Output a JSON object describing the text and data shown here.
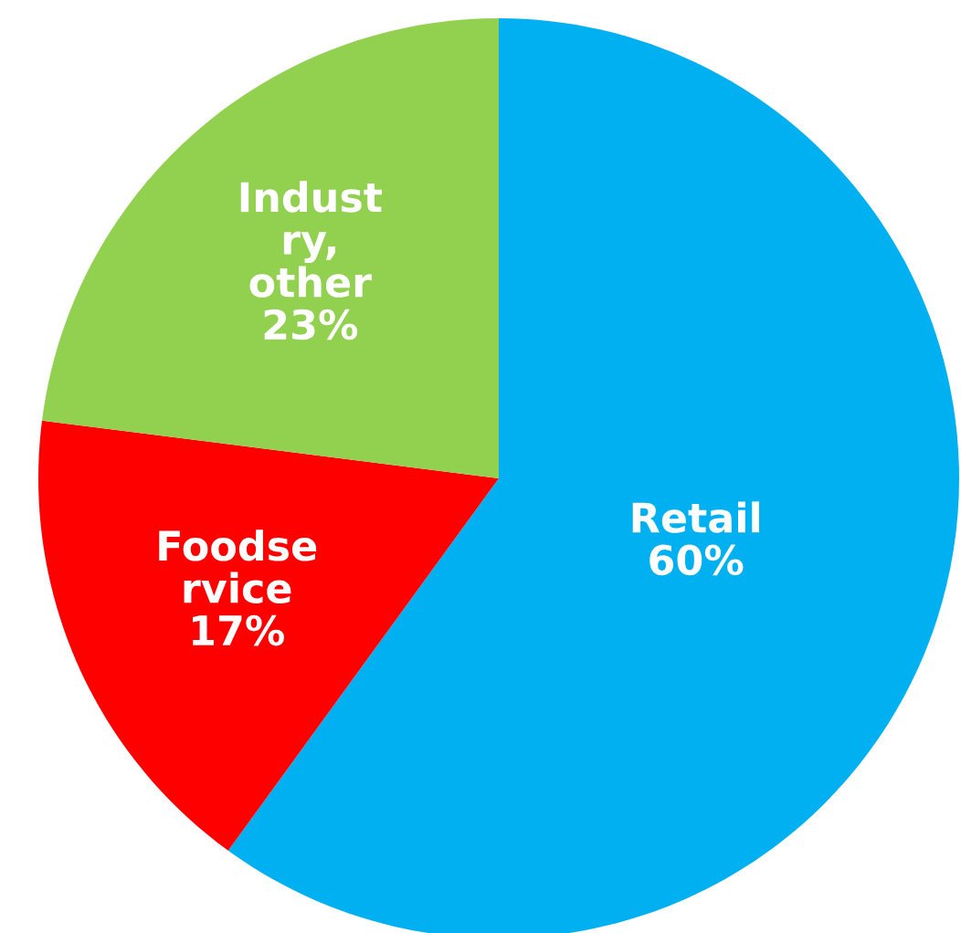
{
  "chart_data": {
    "type": "pie",
    "categories": [
      "Retail",
      "Foodse\nrvice",
      "Indust\nry,\nother"
    ],
    "values": [
      60,
      17,
      23
    ],
    "colors": [
      "#00b0f0",
      "#ff0000",
      "#92d050"
    ],
    "value_labels": [
      "60%",
      "17%",
      "23%"
    ],
    "legend": false
  }
}
